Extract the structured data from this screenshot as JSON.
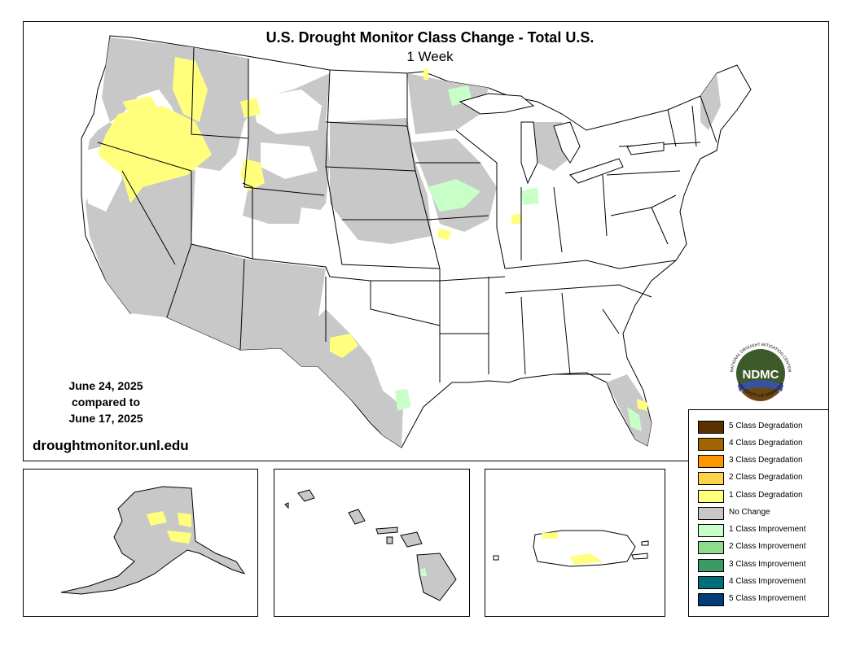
{
  "map": {
    "title": "U.S. Drought Monitor Class Change - Total U.S.",
    "subtitle": "1 Week",
    "date_current": "June 24, 2025",
    "compared_label": "compared to",
    "date_previous": "June 17, 2025",
    "website": "droughtmonitor.unl.edu"
  },
  "logo": {
    "name": "NDMC",
    "ring_text_top": "NATIONAL DROUGHT MITIGATION CENTER",
    "ring_text_bottom": "UNIVERSITY OF NEBRASKA"
  },
  "legend": [
    {
      "label": "5 Class Degradation",
      "color": "#5a3200"
    },
    {
      "label": "4 Class Degradation",
      "color": "#a06400"
    },
    {
      "label": "3 Class Degradation",
      "color": "#ff9600"
    },
    {
      "label": "2 Class Degradation",
      "color": "#ffd24b"
    },
    {
      "label": "1 Class Degradation",
      "color": "#ffff7d"
    },
    {
      "label": "No Change",
      "color": "#c8c8c8"
    },
    {
      "label": "1 Class Improvement",
      "color": "#c8ffc8"
    },
    {
      "label": "2 Class Improvement",
      "color": "#8cdc8c"
    },
    {
      "label": "3 Class Improvement",
      "color": "#3c9b64"
    },
    {
      "label": "4 Class Improvement",
      "color": "#006e78"
    },
    {
      "label": "5 Class Improvement",
      "color": "#003c78"
    }
  ],
  "colors": {
    "no_change": "#c8c8c8",
    "degradation_1": "#ffff7d",
    "improvement_1": "#c8ffc8",
    "logo_green": "#3c5a2a",
    "logo_blue": "#3c50a0",
    "logo_brown": "#6e4614"
  }
}
